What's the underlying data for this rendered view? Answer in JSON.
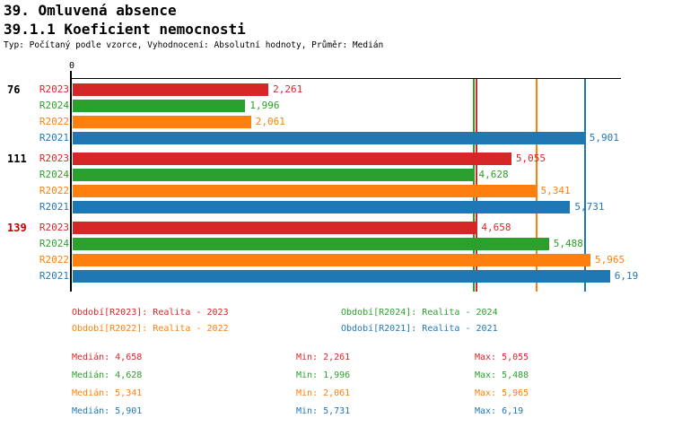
{
  "header": {
    "title": "39. Omluvená absence",
    "subtitle": "39.1.1 Koeficient nemocnosti",
    "meta": "Typ: Počítaný podle vzorce, Vyhodnocení: Absolutní hodnoty, Průměr: Medián"
  },
  "colors": {
    "R2023": "#d62728",
    "R2024": "#2ca02c",
    "R2022": "#ff7f0e",
    "R2021": "#1f77b4",
    "axis": "#000000",
    "group_label": "#000000",
    "group_label_highlight": "#cc0000"
  },
  "chart_data": {
    "type": "bar",
    "orientation": "horizontal",
    "title": "39.1.1 Koeficient nemocnosti",
    "value_axis": {
      "origin_label": "0",
      "min": 0,
      "max": 6.25,
      "position": "top",
      "grid": false
    },
    "series_order": [
      "R2023",
      "R2024",
      "R2022",
      "R2021"
    ],
    "groups": [
      {
        "label": "76",
        "highlight": false,
        "bars": [
          {
            "series": "R2023",
            "value": 2.261,
            "display": "2,261"
          },
          {
            "series": "R2024",
            "value": 1.996,
            "display": "1,996"
          },
          {
            "series": "R2022",
            "value": 2.061,
            "display": "2,061"
          },
          {
            "series": "R2021",
            "value": 5.901,
            "display": "5,901"
          }
        ]
      },
      {
        "label": "111",
        "highlight": false,
        "bars": [
          {
            "series": "R2023",
            "value": 5.055,
            "display": "5,055"
          },
          {
            "series": "R2024",
            "value": 4.628,
            "display": "4,628"
          },
          {
            "series": "R2022",
            "value": 5.341,
            "display": "5,341"
          },
          {
            "series": "R2021",
            "value": 5.731,
            "display": "5,731"
          }
        ]
      },
      {
        "label": "139",
        "highlight": true,
        "bars": [
          {
            "series": "R2023",
            "value": 4.658,
            "display": "4,658"
          },
          {
            "series": "R2024",
            "value": 5.488,
            "display": "5,488"
          },
          {
            "series": "R2022",
            "value": 5.965,
            "display": "5,965"
          },
          {
            "series": "R2021",
            "value": 6.19,
            "display": "6,19"
          }
        ]
      }
    ],
    "median_lines": [
      {
        "series": "R2023",
        "value": 4.658
      },
      {
        "series": "R2024",
        "value": 4.628
      },
      {
        "series": "R2022",
        "value": 5.341
      },
      {
        "series": "R2021",
        "value": 5.901
      }
    ]
  },
  "legend": {
    "items": [
      {
        "series": "R2023",
        "label": "Období[R2023]: Realita - 2023"
      },
      {
        "series": "R2024",
        "label": "Období[R2024]: Realita - 2024"
      },
      {
        "series": "R2022",
        "label": "Období[R2022]: Realita - 2022"
      },
      {
        "series": "R2021",
        "label": "Období[R2021]: Realita - 2021"
      }
    ]
  },
  "stats": {
    "rows": [
      {
        "series": "R2023",
        "median": "Medián: 4,658",
        "min": "Min: 2,261",
        "max": "Max: 5,055"
      },
      {
        "series": "R2024",
        "median": "Medián: 4,628",
        "min": "Min: 1,996",
        "max": "Max: 5,488"
      },
      {
        "series": "R2022",
        "median": "Medián: 5,341",
        "min": "Min: 2,061",
        "max": "Max: 5,965"
      },
      {
        "series": "R2021",
        "median": "Medián: 5,901",
        "min": "Min: 5,731",
        "max": "Max: 6,19"
      }
    ]
  }
}
